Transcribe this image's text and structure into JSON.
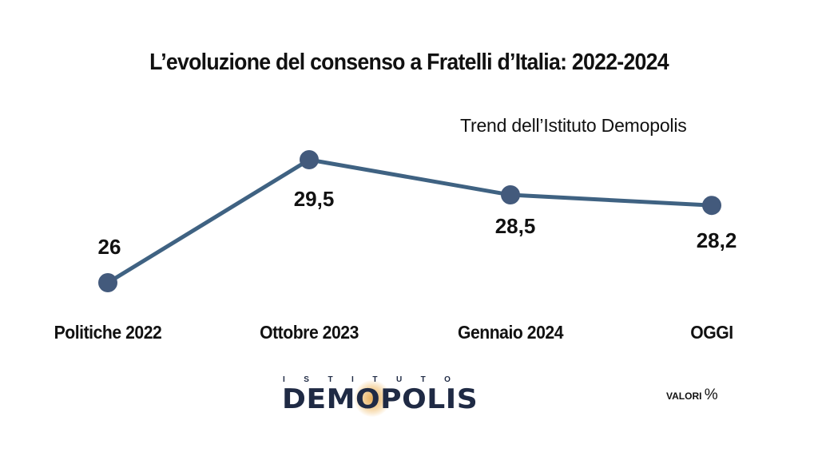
{
  "chart_data": {
    "type": "line",
    "title": "L’evoluzione del consenso a Fratelli d’Italia: 2022-2024",
    "subtitle": "Trend dell’Istituto Demopolis",
    "categories": [
      "Politiche 2022",
      "Ottobre 2023",
      "Gennaio 2024",
      "OGGI"
    ],
    "series": [
      {
        "values": [
          26,
          29.5,
          28.5,
          28.2
        ],
        "labels": [
          "26",
          "29,5",
          "28,5",
          "28,2"
        ]
      }
    ],
    "ylim": [
      25,
      30
    ],
    "grid": false,
    "line_color": "#3f6282",
    "marker_color": "#435a7c"
  },
  "logo": {
    "top_text": "ISTITUTO",
    "main_text": "DEMOPOLIS"
  },
  "unit": {
    "label": "VALORI",
    "symbol": "%"
  }
}
